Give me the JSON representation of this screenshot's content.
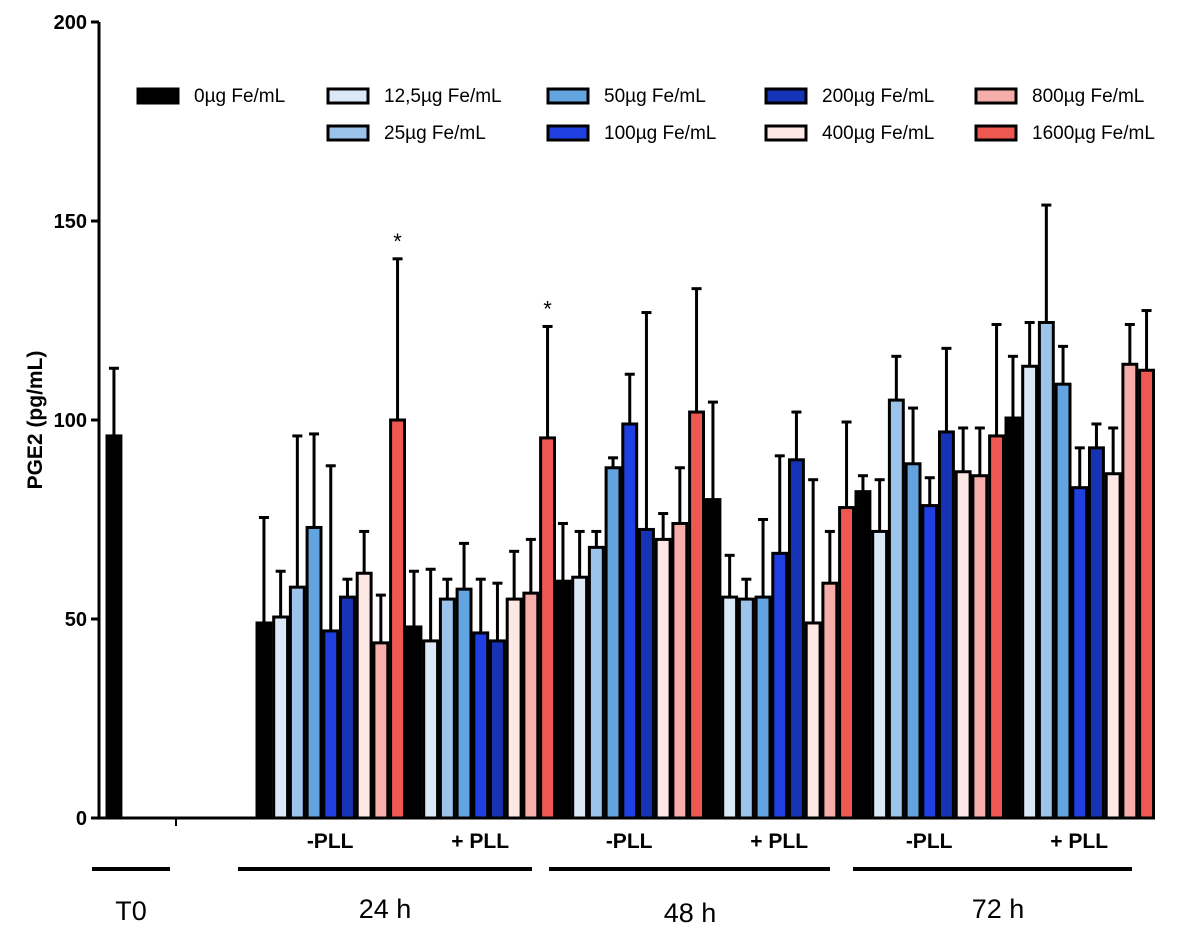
{
  "chart_data": {
    "type": "bar",
    "title": "",
    "ylabel": "PGE2 (pg/mL)",
    "xlabel": "",
    "ylim": [
      0,
      200
    ],
    "yticks": [
      "0",
      "50",
      "100",
      "150",
      "200"
    ],
    "grid": false,
    "legend_position": "top",
    "series": [
      {
        "name": "0µg Fe/mL",
        "color": "#000000"
      },
      {
        "name": "12,5µg Fe/mL",
        "color": "#dbe9f7"
      },
      {
        "name": "25µg Fe/mL",
        "color": "#9cc3ea"
      },
      {
        "name": "50µg Fe/mL",
        "color": "#63a3e0"
      },
      {
        "name": "100µg Fe/mL",
        "color": "#1f3fe0"
      },
      {
        "name": "200µg Fe/mL",
        "color": "#1633b5"
      },
      {
        "name": "400µg Fe/mL",
        "color": "#fde8e6"
      },
      {
        "name": "800µg Fe/mL",
        "color": "#f6aeaa"
      },
      {
        "name": "1600µg Fe/mL",
        "color": "#ee5850"
      }
    ],
    "groups": [
      {
        "label": "",
        "time": "T0",
        "values": [
          96
        ],
        "errors": [
          113
        ],
        "stars": []
      },
      {
        "label": "-PLL",
        "time": "24 h",
        "values": [
          49,
          50.5,
          58,
          73,
          47,
          55.5,
          61.5,
          44,
          100
        ],
        "errors": [
          75.5,
          62,
          96,
          96.5,
          88.5,
          60,
          72,
          56,
          140.5
        ],
        "stars": [
          "",
          "",
          "",
          "",
          "",
          "",
          "",
          "",
          "*"
        ]
      },
      {
        "label": "+ PLL",
        "time": "24 h",
        "values": [
          48,
          44.5,
          55,
          57.5,
          46.5,
          44.5,
          55,
          56.5,
          95.5
        ],
        "errors": [
          62,
          62.5,
          60,
          69,
          60,
          59,
          67,
          70,
          123.5
        ],
        "stars": [
          "",
          "",
          "",
          "",
          "",
          "",
          "",
          "",
          "*"
        ]
      },
      {
        "label": "-PLL",
        "time": "48 h",
        "values": [
          59.5,
          60.5,
          68,
          88,
          99,
          72.5,
          70,
          74,
          102
        ],
        "errors": [
          74,
          72,
          72,
          90.5,
          111.5,
          127,
          76.5,
          88,
          133
        ],
        "stars": []
      },
      {
        "label": "+ PLL",
        "time": "48 h",
        "values": [
          80,
          55.5,
          55,
          55.5,
          66.5,
          90,
          49,
          59,
          78
        ],
        "errors": [
          104.5,
          66,
          60,
          75,
          91,
          102,
          85,
          72,
          99.5
        ],
        "stars": []
      },
      {
        "label": "-PLL",
        "time": "72 h",
        "values": [
          82,
          72,
          105,
          89,
          78.5,
          97,
          87,
          86,
          96
        ],
        "errors": [
          86,
          85,
          116,
          103,
          85.5,
          118,
          98,
          98,
          124
        ],
        "stars": []
      },
      {
        "label": "+ PLL",
        "time": "72 h",
        "values": [
          100.5,
          113.5,
          124.5,
          109,
          83,
          93,
          86.5,
          114,
          112.5
        ],
        "errors": [
          116,
          124.5,
          154,
          118.5,
          93,
          99,
          98,
          124,
          127.5
        ],
        "stars": []
      }
    ],
    "time_labels": [
      "T0",
      "24 h",
      "48 h",
      "72 h"
    ]
  }
}
